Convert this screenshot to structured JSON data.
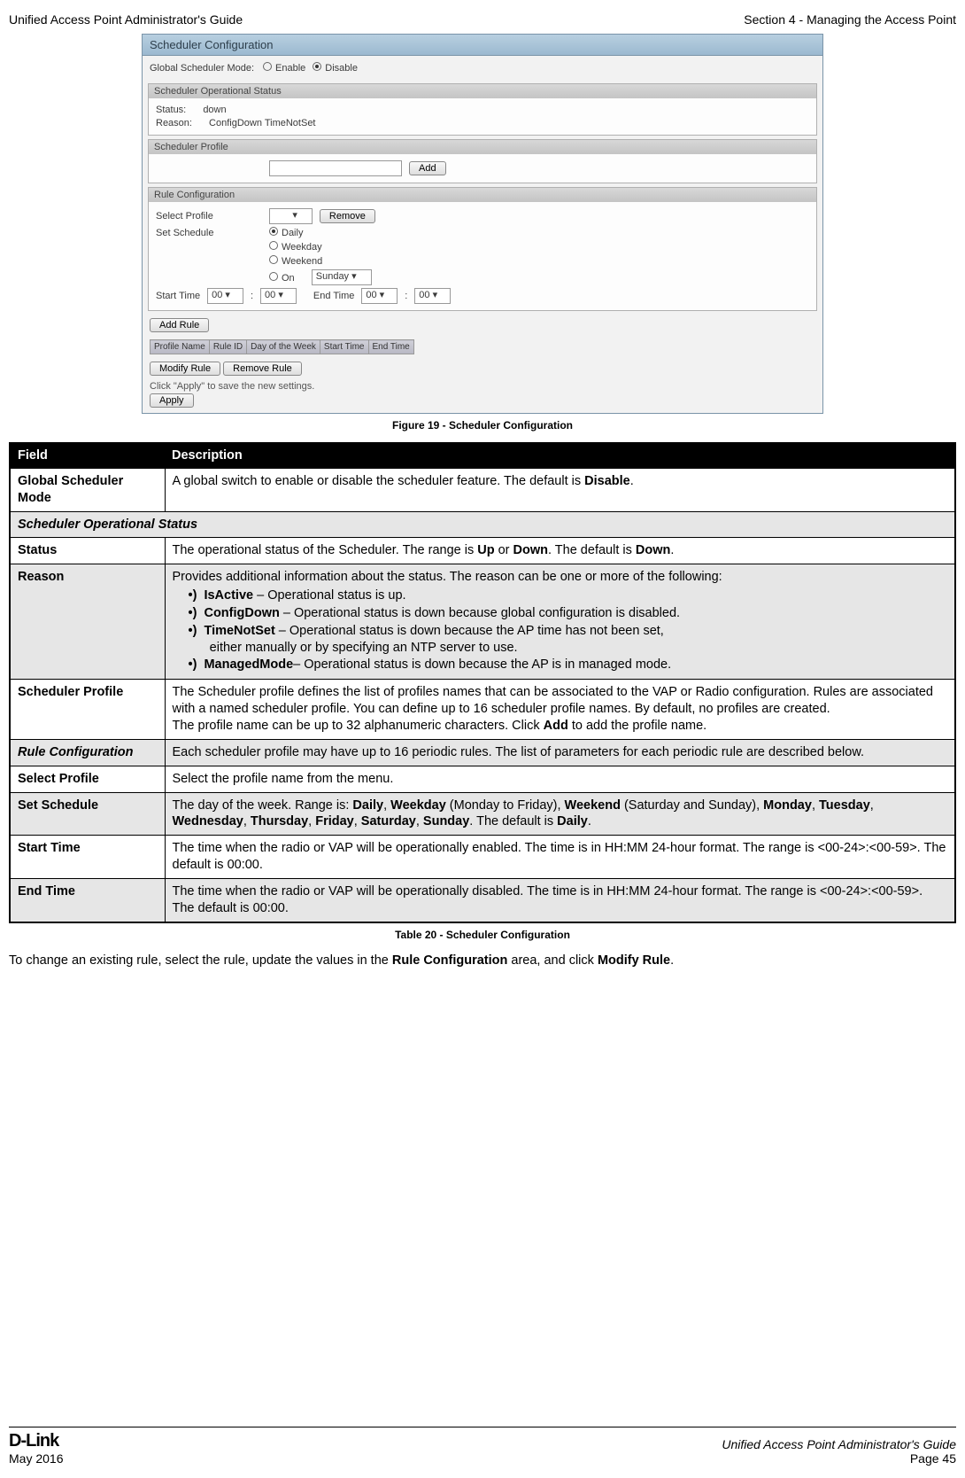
{
  "header": {
    "left": "Unified Access Point Administrator's Guide",
    "right": "Section 4 - Managing the Access Point"
  },
  "scheduler_panel": {
    "title": "Scheduler Configuration",
    "global_mode_label": "Global Scheduler Mode:",
    "enable_label": "Enable",
    "disable_label": "Disable",
    "op_status_hdr": "Scheduler Operational Status",
    "status_label": "Status:",
    "status_value": "down",
    "reason_label": "Reason:",
    "reason_value": "ConfigDown  TimeNotSet",
    "profile_hdr": "Scheduler Profile",
    "add_btn": "Add",
    "rule_conf_hdr": "Rule Configuration",
    "select_profile_label": "Select Profile",
    "remove_btn": "Remove",
    "set_schedule_label": "Set Schedule",
    "daily": "Daily",
    "weekday": "Weekday",
    "weekend": "Weekend",
    "on": "On",
    "sunday": "Sunday",
    "start_time_label": "Start Time",
    "end_time_label": "End Time",
    "zero": "00",
    "add_rule_btn": "Add Rule",
    "th_profile": "Profile Name",
    "th_ruleid": "Rule ID",
    "th_day": "Day of the Week",
    "th_start": "Start Time",
    "th_end": "End Time",
    "modify_rule_btn": "Modify Rule",
    "remove_rule_btn": "Remove Rule",
    "apply_note": "Click \"Apply\" to save the new settings.",
    "apply_btn": "Apply"
  },
  "figure_caption": "Figure 19 - Scheduler Configuration",
  "fd_table": {
    "header_field": "Field",
    "header_desc": "Description",
    "rows": {
      "r0": {
        "field": "Global Scheduler Mode",
        "desc_pre": "A global switch to enable or disable the scheduler feature. The default is ",
        "desc_bold": "Disable",
        "desc_post": "."
      },
      "r1": {
        "field": "Scheduler Operational Status"
      },
      "r2": {
        "field": "Status",
        "d1": "The operational status of the Scheduler. The range is ",
        "b1": "Up",
        "d2": " or ",
        "b2": "Down",
        "d3": ". The default is ",
        "b3": "Down",
        "d4": "."
      },
      "r3": {
        "field": "Reason",
        "intro": "Provides additional information about the status. The reason can be one or more of the following:",
        "li1b": "IsActive",
        "li1": " – Operational status is up.",
        "li2b": "ConfigDown",
        "li2": " – Operational status is down because global configuration is disabled.",
        "li3b": "TimeNotSet",
        "li3a": " – Operational status is down because the AP time has not been set,",
        "li3c": "either manually or by specifying an NTP server to use.",
        "li4b": "ManagedMode",
        "li4": "– Operational status is down because the AP is in managed mode."
      },
      "r4": {
        "field": "Scheduler Profile",
        "p1": "The Scheduler profile defines the list of profiles names that can be associated to the VAP or Radio configuration. Rules are associated with a named scheduler profile. You can define up to 16 scheduler profile names. By default, no profiles are created.",
        "p2a": "The profile name can be up to 32 alphanumeric characters. Click ",
        "p2b": "Add",
        "p2c": " to add the profile name."
      },
      "r5": {
        "field": "Rule Configuration",
        "desc": "Each scheduler profile may have up to 16 periodic rules. The list of parameters for each periodic rule are described below."
      },
      "r6": {
        "field": "Select Profile",
        "desc": "Select the profile name from the menu."
      },
      "r7": {
        "field": "Set Schedule",
        "d1": "The day of the week. Range is: ",
        "b1": "Daily",
        "d2": ", ",
        "b2": "Weekday",
        "d3": " (Monday to Friday), ",
        "b3": "Weekend",
        "d4": " (Saturday and Sunday), ",
        "b4": "Monday",
        "d5": ", ",
        "b5": "Tuesday",
        "d6": ", ",
        "b6": "Wednesday",
        "d7": ", ",
        "b7": "Thursday",
        "d8": ", ",
        "b8": "Friday",
        "d9": ", ",
        "b9": "Saturday",
        "d10": ", ",
        "b10": "Sunday",
        "d11": ". The default is ",
        "b11": "Daily",
        "d12": "."
      },
      "r8": {
        "field": "Start Time",
        "desc": "The time when the radio or VAP will be operationally enabled. The time is in HH:MM 24-hour format. The range is <00-24>:<00-59>. The default is 00:00."
      },
      "r9": {
        "field": "End Time",
        "desc": "The time when the radio or VAP will be operationally disabled. The time is in HH:MM 24-hour format. The range is <00-24>:<00-59>. The default is 00:00."
      }
    }
  },
  "table_caption": "Table 20 - Scheduler Configuration",
  "trailing": {
    "t1": "To change an existing rule, select the rule, update the values in the ",
    "b1": "Rule Configuration",
    "t2": " area, and click ",
    "b2": "Modify Rule",
    "t3": "."
  },
  "footer": {
    "logo": "D-Link",
    "date": "May 2016",
    "guide": "Unified Access Point Administrator's Guide",
    "page": "Page 45"
  }
}
